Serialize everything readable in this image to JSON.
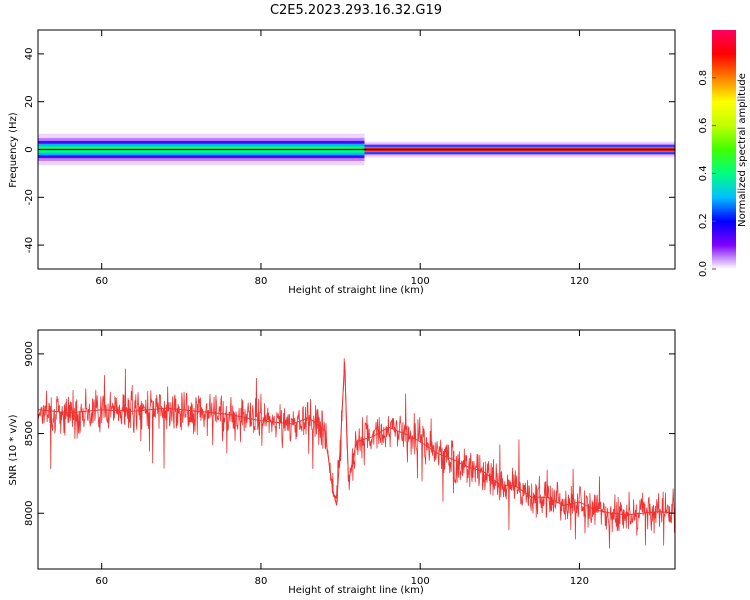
{
  "title": "C2E5.2023.293.16.32.G19",
  "chart_data": [
    {
      "type": "heatmap",
      "xlabel": "Height of straight line (km)",
      "ylabel": "Frequency (Hz)",
      "xlim": [
        52,
        132
      ],
      "ylim": [
        -50,
        50
      ],
      "xticks": [
        60,
        80,
        100,
        120
      ],
      "yticks": [
        -40,
        -20,
        0,
        20,
        40
      ],
      "colorbar": {
        "label": "Normalized spectral amplitude",
        "range": [
          0,
          1
        ],
        "ticks": [
          "0.0",
          "0.2",
          "0.4",
          "0.6",
          "0.8"
        ],
        "colormap": [
          "#ffffff",
          "#8000ff",
          "#0000ff",
          "#00bfff",
          "#00ff80",
          "#40ff00",
          "#c0ff00",
          "#ffff00",
          "#ff8000",
          "#ff0000",
          "#ff0060"
        ]
      },
      "band": {
        "center_hz": 0,
        "segments": [
          {
            "x": [
              52,
              93
            ],
            "halfwidth_hz": 3,
            "peak_color": "#00ff80"
          },
          {
            "x": [
              93,
              132
            ],
            "halfwidth_hz": 1.5,
            "peak_color": "#ff2000"
          }
        ]
      },
      "grid": false
    },
    {
      "type": "line",
      "xlabel": "Height of straight line (km)",
      "ylabel": "SNR (10 * v/v)",
      "xlim": [
        52,
        132
      ],
      "ylim": [
        7650,
        9150
      ],
      "xticks": [
        60,
        80,
        100,
        120
      ],
      "yticks": [
        8000,
        8500,
        9000
      ],
      "series": [
        {
          "color": "#ee3333",
          "x": [
            52,
            56,
            60,
            64,
            68,
            72,
            76,
            80,
            84,
            86,
            88,
            89,
            89.5,
            90,
            90.5,
            91,
            92,
            94,
            96,
            98,
            100,
            102,
            104,
            106,
            108,
            110,
            112,
            114,
            116,
            118,
            120,
            122,
            124,
            126,
            128,
            130,
            132
          ],
          "y": [
            8650,
            8630,
            8650,
            8640,
            8660,
            8640,
            8620,
            8580,
            8560,
            8600,
            8520,
            8150,
            8050,
            8450,
            8950,
            8200,
            8450,
            8480,
            8540,
            8500,
            8450,
            8380,
            8340,
            8290,
            8260,
            8180,
            8170,
            8100,
            8100,
            8050,
            8070,
            8020,
            8000,
            7990,
            8000,
            8010,
            8000
          ]
        }
      ],
      "grid": false
    }
  ]
}
